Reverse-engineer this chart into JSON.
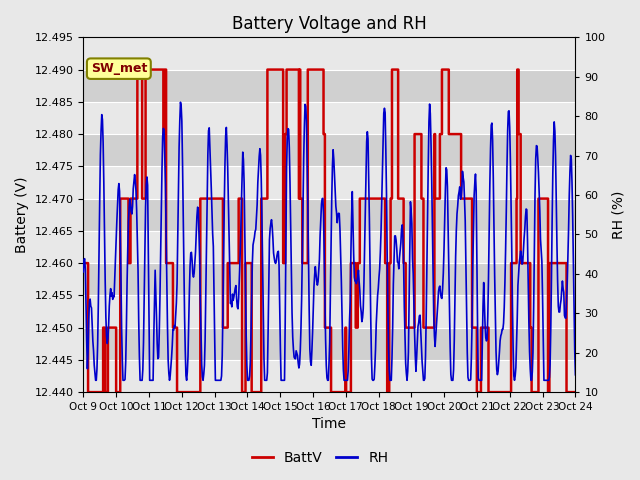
{
  "title": "Battery Voltage and RH",
  "xlabel": "Time",
  "ylabel_left": "Battery (V)",
  "ylabel_right": "RH (%)",
  "annotation": "SW_met",
  "x_tick_labels": [
    "Oct 9",
    "Oct 10",
    "Oct 11",
    "Oct 12",
    "Oct 13",
    "Oct 14",
    "Oct 15",
    "Oct 16",
    "Oct 17",
    "Oct 18",
    "Oct 19",
    "Oct 20",
    "Oct 21",
    "Oct 22",
    "Oct 23",
    "Oct 24"
  ],
  "ylim_left": [
    12.44,
    12.495
  ],
  "ylim_right": [
    10,
    100
  ],
  "yticks_left": [
    12.44,
    12.445,
    12.45,
    12.455,
    12.46,
    12.465,
    12.47,
    12.475,
    12.48,
    12.485,
    12.49,
    12.495
  ],
  "yticks_right": [
    10,
    20,
    30,
    40,
    50,
    60,
    70,
    80,
    90,
    100
  ],
  "batt_color": "#cc0000",
  "rh_color": "#0000cc",
  "fig_bg_color": "#e8e8e8",
  "plot_bg_color": "#d3d3d3",
  "band_color_light": "#e8e8e8",
  "band_color_dark": "#d0d0d0",
  "annotation_bg": "#ffff99",
  "annotation_border": "#808000",
  "legend_batt_label": "BattV",
  "legend_rh_label": "RH"
}
